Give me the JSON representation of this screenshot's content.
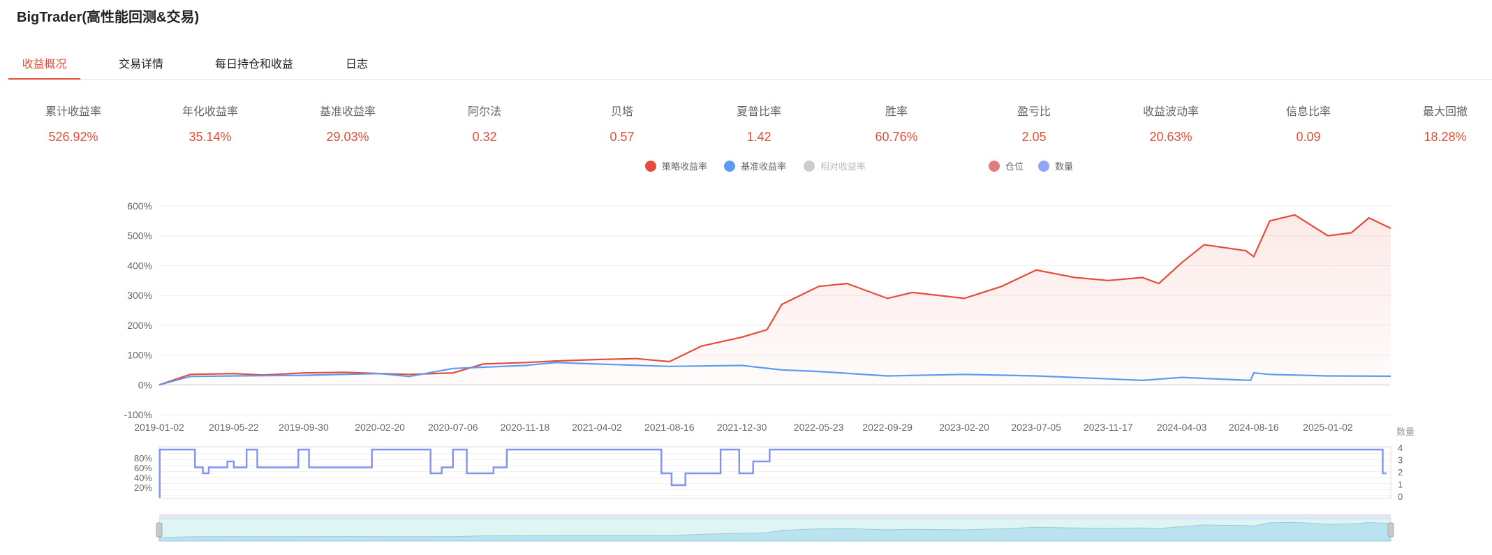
{
  "app_title": "BigTrader(高性能回测&交易)",
  "tabs": [
    {
      "label": "收益概况",
      "active": true
    },
    {
      "label": "交易详情",
      "active": false
    },
    {
      "label": "每日持仓和收益",
      "active": false
    },
    {
      "label": "日志",
      "active": false
    }
  ],
  "metrics": [
    {
      "label": "累计收益率",
      "value": "526.92%"
    },
    {
      "label": "年化收益率",
      "value": "35.14%"
    },
    {
      "label": "基准收益率",
      "value": "29.03%"
    },
    {
      "label": "阿尔法",
      "value": "0.32"
    },
    {
      "label": "贝塔",
      "value": "0.57"
    },
    {
      "label": "夏普比率",
      "value": "1.42"
    },
    {
      "label": "胜率",
      "value": "60.76%"
    },
    {
      "label": "盈亏比",
      "value": "2.05"
    },
    {
      "label": "收益波动率",
      "value": "20.63%"
    },
    {
      "label": "信息比率",
      "value": "0.09"
    },
    {
      "label": "最大回撤",
      "value": "18.28%"
    }
  ],
  "legend": [
    {
      "label": "策略收益率",
      "color": "#e44d3a",
      "enabled": true
    },
    {
      "label": "基准收益率",
      "color": "#5b9cf0",
      "enabled": true
    },
    {
      "label": "相对收益率",
      "color": "#cccccc",
      "enabled": false
    },
    {
      "label": "仓位",
      "color": "#e07c7c",
      "enabled": true
    },
    {
      "label": "数量",
      "color": "#8ea6f5",
      "enabled": true
    }
  ],
  "chart_data": [
    {
      "type": "line",
      "ylim": [
        -100,
        600
      ],
      "y_ticks": [
        "600%",
        "500%",
        "400%",
        "300%",
        "200%",
        "100%",
        "0%",
        "-100%"
      ],
      "x_tick_labels": [
        "2019-01-02",
        "2019-05-22",
        "2019-09-30",
        "2020-02-20",
        "2020-07-06",
        "2020-11-18",
        "2021-04-02",
        "2021-08-16",
        "2021-12-30",
        "2022-05-23",
        "2022-09-29",
        "2023-02-20",
        "2023-07-05",
        "2023-11-17",
        "2024-04-03",
        "2024-08-16",
        "2025-01-02"
      ],
      "grid": true,
      "series": [
        {
          "name": "策略收益率",
          "color": "#e44d3a",
          "x": [
            "2019-01-02",
            "2019-03-01",
            "2019-05-22",
            "2019-07-15",
            "2019-09-30",
            "2019-12-15",
            "2020-02-20",
            "2020-04-15",
            "2020-07-06",
            "2020-09-01",
            "2020-11-18",
            "2021-01-15",
            "2021-04-02",
            "2021-06-15",
            "2021-08-16",
            "2021-10-15",
            "2021-12-30",
            "2022-02-15",
            "2022-03-15",
            "2022-05-23",
            "2022-07-15",
            "2022-09-29",
            "2022-11-15",
            "2023-02-20",
            "2023-05-01",
            "2023-07-05",
            "2023-09-15",
            "2023-11-17",
            "2024-01-20",
            "2024-02-20",
            "2024-04-03",
            "2024-05-15",
            "2024-08-01",
            "2024-08-16",
            "2024-09-15",
            "2024-11-01",
            "2025-01-02",
            "2025-02-15",
            "2025-03-20",
            "2025-04-30"
          ],
          "values": [
            0,
            35,
            38,
            33,
            40,
            42,
            38,
            35,
            40,
            70,
            75,
            80,
            85,
            88,
            78,
            130,
            160,
            185,
            270,
            330,
            340,
            290,
            310,
            290,
            330,
            385,
            360,
            350,
            360,
            340,
            410,
            470,
            450,
            430,
            550,
            570,
            500,
            510,
            560,
            525
          ]
        },
        {
          "name": "基准收益率",
          "color": "#5b9cf0",
          "x": [
            "2019-01-02",
            "2019-03-01",
            "2019-05-22",
            "2019-09-30",
            "2020-02-20",
            "2020-04-15",
            "2020-07-06",
            "2020-11-18",
            "2021-01-15",
            "2021-04-02",
            "2021-08-16",
            "2021-12-30",
            "2022-03-15",
            "2022-05-23",
            "2022-09-29",
            "2023-02-20",
            "2023-07-05",
            "2023-11-17",
            "2024-01-20",
            "2024-04-03",
            "2024-08-10",
            "2024-08-16",
            "2024-09-15",
            "2025-01-02",
            "2025-04-30"
          ],
          "values": [
            0,
            28,
            30,
            32,
            38,
            28,
            55,
            65,
            75,
            70,
            62,
            65,
            50,
            45,
            30,
            35,
            30,
            20,
            15,
            25,
            15,
            40,
            35,
            30,
            29
          ]
        }
      ]
    },
    {
      "type": "area",
      "y_ticks": [
        "80%",
        "60%",
        "40%",
        "20%"
      ],
      "y2_title": "数量",
      "y2_ticks": [
        "4",
        "3",
        "2",
        "1",
        "0"
      ],
      "series": [
        {
          "name": "数量",
          "color": "#7f93ef",
          "x": [
            "2019-01-02",
            "2019-01-03",
            "2019-03-10",
            "2019-03-25",
            "2019-04-05",
            "2019-05-10",
            "2019-05-22",
            "2019-06-15",
            "2019-07-05",
            "2019-09-20",
            "2019-10-10",
            "2019-11-15",
            "2020-02-05",
            "2020-05-25",
            "2020-06-15",
            "2020-07-06",
            "2020-08-01",
            "2020-09-20",
            "2020-10-15",
            "2021-08-01",
            "2021-08-20",
            "2021-09-15",
            "2021-11-20",
            "2021-12-25",
            "2022-01-20",
            "2022-02-20",
            "2025-04-08",
            "2025-04-15",
            "2025-04-22"
          ],
          "values": [
            0,
            4,
            2.5,
            2,
            2.5,
            3,
            2.5,
            4,
            2.5,
            4,
            2.5,
            2.5,
            4,
            2,
            2.5,
            4,
            2,
            2.5,
            4,
            2,
            1,
            2,
            4,
            2,
            3,
            4,
            4,
            2,
            2
          ]
        }
      ]
    }
  ]
}
